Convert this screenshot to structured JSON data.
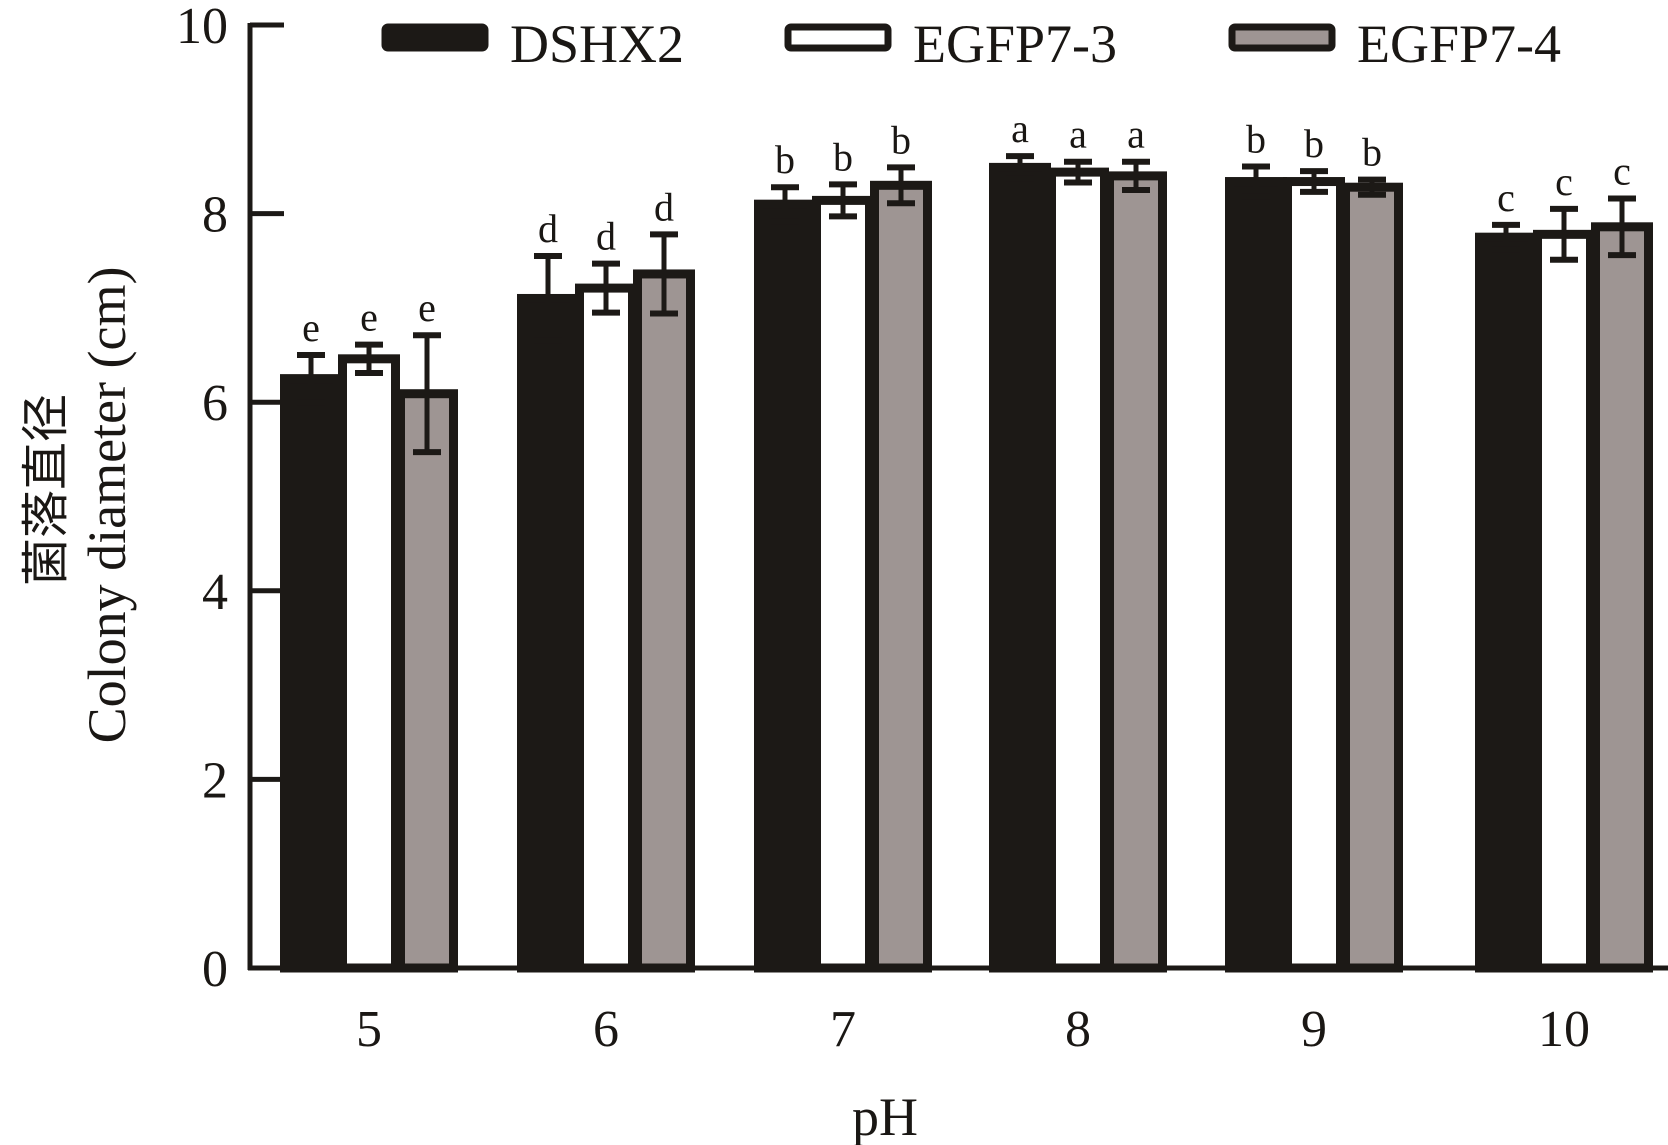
{
  "chart_data": {
    "type": "bar",
    "title": "",
    "xlabel": "pH",
    "ylabel": [
      "菌落直径",
      "Colony diameter (cm)"
    ],
    "ylim": [
      0,
      10
    ],
    "yticks": [
      0,
      2,
      4,
      6,
      8,
      10
    ],
    "categories": [
      "5",
      "6",
      "7",
      "8",
      "9",
      "10"
    ],
    "legend_position": "top",
    "series": [
      {
        "name": "DSHX2",
        "color": "#1c1916",
        "values": [
          6.25,
          7.1,
          8.1,
          8.49,
          8.34,
          7.75
        ],
        "errors": [
          0.25,
          0.45,
          0.18,
          0.12,
          0.16,
          0.13
        ],
        "letters": [
          "e",
          "d",
          "b",
          "a",
          "b",
          "c"
        ]
      },
      {
        "name": "EGFP7-3",
        "color": "#ffffff",
        "values": [
          6.46,
          7.21,
          8.14,
          8.44,
          8.34,
          7.78
        ],
        "errors": [
          0.15,
          0.26,
          0.17,
          0.11,
          0.11,
          0.27
        ],
        "letters": [
          "e",
          "d",
          "b",
          "a",
          "b",
          "c"
        ]
      },
      {
        "name": "EGFP7-4",
        "color": "#9e9593",
        "values": [
          6.09,
          7.36,
          8.3,
          8.4,
          8.28,
          7.86
        ],
        "errors": [
          0.62,
          0.42,
          0.19,
          0.15,
          0.08,
          0.3
        ],
        "letters": [
          "e",
          "d",
          "b",
          "a",
          "b",
          "c"
        ]
      }
    ],
    "grid": false
  }
}
